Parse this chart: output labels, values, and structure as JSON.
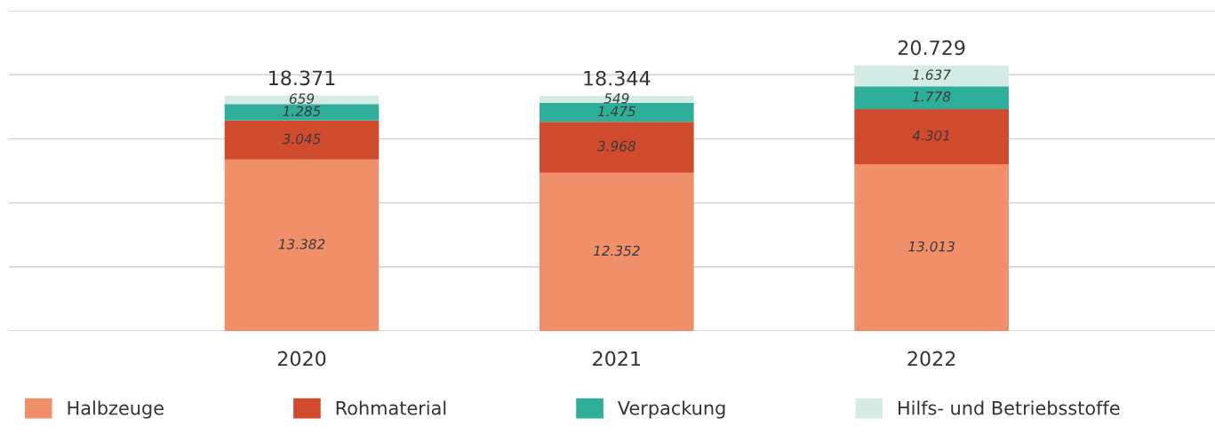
{
  "chart_data": {
    "type": "bar",
    "stacked": true,
    "categories": [
      "2020",
      "2021",
      "2022"
    ],
    "series": [
      {
        "name": "Halbzeuge",
        "color": "#f0906b",
        "values": [
          13382,
          12352,
          13013
        ],
        "value_labels": [
          "13.382",
          "12.352",
          "13.013"
        ]
      },
      {
        "name": "Rohmaterial",
        "color": "#d04a2e",
        "values": [
          3045,
          3968,
          4301
        ],
        "value_labels": [
          "3.045",
          "3.968",
          "4.301"
        ]
      },
      {
        "name": "Verpackung",
        "color": "#2fae9a",
        "values": [
          1285,
          1475,
          1778
        ],
        "value_labels": [
          "1.285",
          "1.475",
          "1.778"
        ]
      },
      {
        "name": "Hilfs- und Betriebsstoffe",
        "color": "#d5ebe5",
        "values": [
          659,
          549,
          1637
        ],
        "value_labels": [
          "659",
          "549",
          "1.637"
        ]
      }
    ],
    "totals": [
      "18.371",
      "18.344",
      "20.729"
    ],
    "ylim": [
      0,
      25000
    ],
    "yticks": [
      {
        "value": 0,
        "label": null
      },
      {
        "value": 5000,
        "label": null
      },
      {
        "value": 10000,
        "label": null
      },
      {
        "value": 15000,
        "label": null
      },
      {
        "value": 20000,
        "label": null
      },
      {
        "value": 25000,
        "label": null
      }
    ],
    "tick_labels": "x",
    "grid": "y",
    "legend": "bottom"
  }
}
